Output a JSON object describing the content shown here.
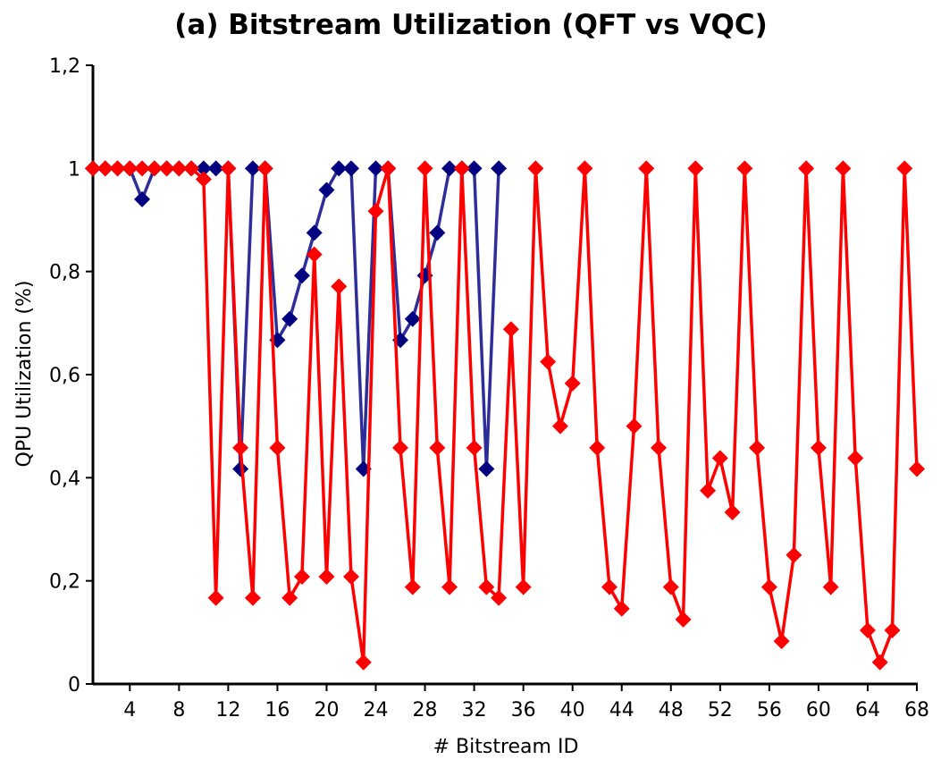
{
  "chart_data": {
    "type": "line",
    "title": "(a) Bitstream Utilization (QFT vs VQC)",
    "xlabel": "# Bitstream ID",
    "ylabel": "QPU Utilization (%)",
    "xlim": [
      1,
      68
    ],
    "ylim": [
      0,
      1.2
    ],
    "xticks": [
      4,
      8,
      12,
      16,
      20,
      24,
      28,
      32,
      36,
      40,
      44,
      48,
      52,
      56,
      60,
      64,
      68
    ],
    "xtick_labels": [
      "4",
      "8",
      "12",
      "16",
      "20",
      "24",
      "28",
      "32",
      "36",
      "40",
      "44",
      "48",
      "52",
      "56",
      "60",
      "64",
      "68"
    ],
    "yticks": [
      0,
      0.2,
      0.4,
      0.6,
      0.8,
      1,
      1.2
    ],
    "ytick_labels": [
      "0",
      "0,2",
      "0,4",
      "0,6",
      "0,8",
      "1",
      "1,2"
    ],
    "series": [
      {
        "name": "QFT",
        "color": "#2e2e99",
        "marker_color": "#000080",
        "x": [
          1,
          2,
          3,
          4,
          5,
          6,
          7,
          8,
          9,
          10,
          11,
          12,
          13,
          14,
          15,
          16,
          17,
          18,
          19,
          20,
          21,
          22,
          23,
          24,
          25,
          26,
          27,
          28,
          29,
          30,
          31,
          32,
          33,
          34
        ],
        "values": [
          1,
          1,
          1,
          1,
          0.94,
          1,
          1,
          1,
          1,
          1,
          1,
          1,
          0.417,
          1,
          1,
          0.667,
          0.708,
          0.792,
          0.875,
          0.958,
          1,
          1,
          0.417,
          1,
          1,
          0.667,
          0.708,
          0.792,
          0.875,
          1,
          1,
          1,
          0.417,
          1
        ]
      },
      {
        "name": "VQC",
        "color": "#ff0000",
        "marker_color": "#ff0000",
        "x": [
          1,
          2,
          3,
          4,
          5,
          6,
          7,
          8,
          9,
          10,
          11,
          12,
          13,
          14,
          15,
          16,
          17,
          18,
          19,
          20,
          21,
          22,
          23,
          24,
          25,
          26,
          27,
          28,
          29,
          30,
          31,
          32,
          33,
          34,
          35,
          36,
          37,
          38,
          39,
          40,
          41,
          42,
          43,
          44,
          45,
          46,
          47,
          48,
          49,
          50,
          51,
          52,
          53,
          54,
          55,
          56,
          57,
          58,
          59,
          60,
          61,
          62,
          63,
          64,
          65,
          66,
          67,
          68
        ],
        "values": [
          1,
          1,
          1,
          1,
          1,
          1,
          1,
          1,
          1,
          0.979,
          0.167,
          1,
          0.458,
          0.167,
          1,
          0.458,
          0.167,
          0.208,
          0.833,
          0.208,
          0.771,
          0.208,
          0.042,
          0.917,
          1,
          0.458,
          0.188,
          1,
          0.458,
          0.188,
          1,
          0.458,
          0.188,
          0.167,
          0.688,
          0.188,
          1,
          0.625,
          0.5,
          0.583,
          1,
          0.458,
          0.188,
          0.146,
          0.5,
          1,
          0.458,
          0.188,
          0.125,
          1,
          0.375,
          0.438,
          0.333,
          1,
          0.458,
          0.188,
          0.083,
          0.25,
          1,
          0.458,
          0.188,
          1,
          0.438,
          0.104,
          0.042,
          0.104,
          1,
          0.417
        ]
      }
    ]
  }
}
